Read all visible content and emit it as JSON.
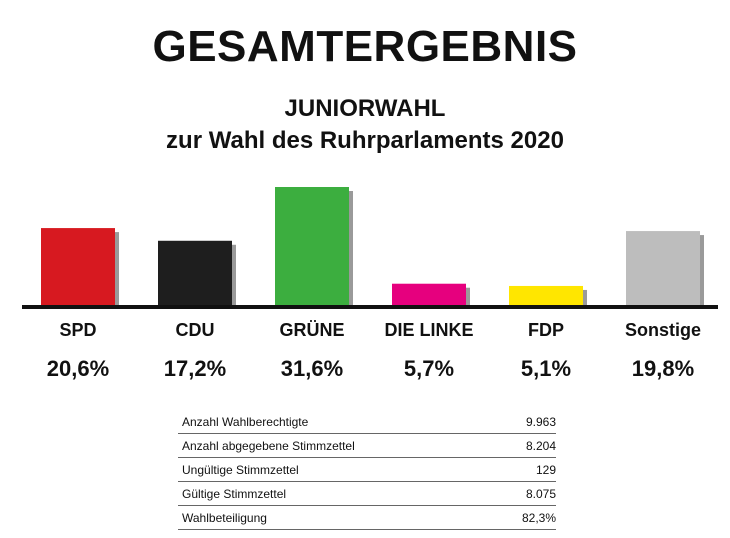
{
  "chart_data": {
    "type": "bar",
    "title": "GESAMTERGEBNIS",
    "subtitle": [
      "JUNIORWAHL",
      "zur Wahl des Ruhrparlaments 2020"
    ],
    "categories": [
      "SPD",
      "CDU",
      "GRÜNE",
      "DIE LINKE",
      "FDP",
      "Sonstige"
    ],
    "values": [
      20.6,
      17.2,
      31.6,
      5.7,
      5.1,
      19.8
    ],
    "value_labels": [
      "20,6%",
      "17,2%",
      "31,6%",
      "5,7%",
      "5,1%",
      "19,8%"
    ],
    "colors": [
      "#d71920",
      "#1e1e1e",
      "#3cae3f",
      "#e6007e",
      "#ffe600",
      "#bdbdbd"
    ],
    "ylim": [
      0,
      31.6
    ],
    "grid": false,
    "legend": "none"
  },
  "stats": [
    {
      "label": "Anzahl Wahlberechtigte",
      "value": "9.963"
    },
    {
      "label": "Anzahl abgegebene Stimmzettel",
      "value": "8.204"
    },
    {
      "label": "Ungültige Stimmzettel",
      "value": "129"
    },
    {
      "label": "Gültige Stimmzettel",
      "value": "8.075"
    },
    {
      "label": "Wahlbeteiligung",
      "value": "82,3%"
    }
  ]
}
